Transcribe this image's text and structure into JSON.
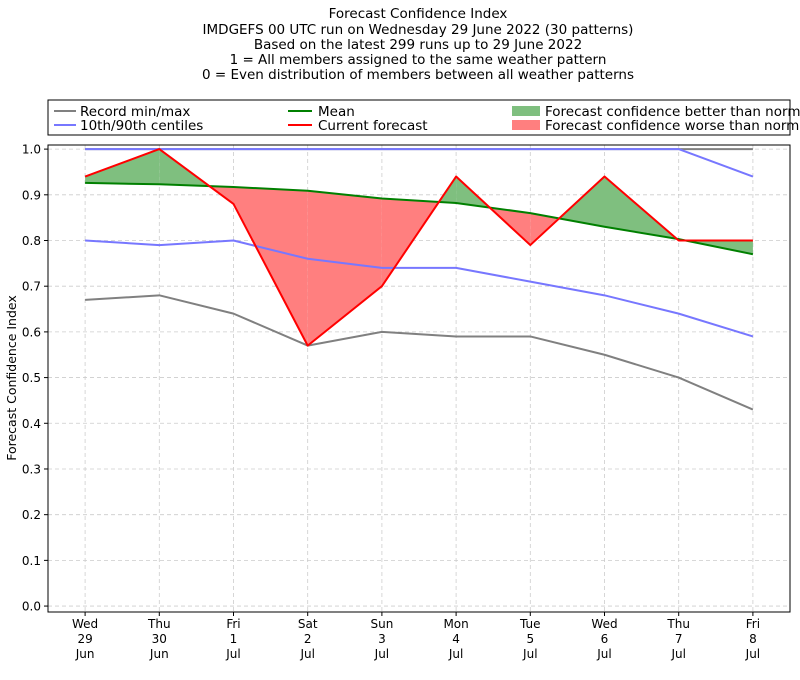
{
  "chart_data": {
    "type": "line",
    "title_lines": [
      "Forecast Confidence Index",
      "IMDGEFS 00 UTC run on Wednesday 29 June 2022 (30 patterns)",
      "Based on the latest 299 runs up to 29 June 2022",
      "1 = All members assigned to the same weather pattern",
      "0 = Even distribution of members between all weather patterns"
    ],
    "ylabel": "Forecast Confidence Index",
    "xlabel": "",
    "categories": [
      [
        "Wed",
        "29",
        "Jun"
      ],
      [
        "Thu",
        "30",
        "Jun"
      ],
      [
        "Fri",
        "1",
        "Jul"
      ],
      [
        "Sat",
        "2",
        "Jul"
      ],
      [
        "Sun",
        "3",
        "Jul"
      ],
      [
        "Mon",
        "4",
        "Jul"
      ],
      [
        "Tue",
        "5",
        "Jul"
      ],
      [
        "Wed",
        "6",
        "Jul"
      ],
      [
        "Thu",
        "7",
        "Jul"
      ],
      [
        "Fri",
        "8",
        "Jul"
      ]
    ],
    "ylim": [
      -0.013,
      1.009
    ],
    "yticks": [
      "0.0",
      "0.1",
      "0.2",
      "0.3",
      "0.4",
      "0.5",
      "0.6",
      "0.7",
      "0.8",
      "0.9",
      "1.0"
    ],
    "grid": true,
    "legend_placement": "top, above plot",
    "series": [
      {
        "name": "Record min/max",
        "color": "#808080",
        "role": "max",
        "values": [
          1.0,
          1.0,
          1.0,
          1.0,
          1.0,
          1.0,
          1.0,
          1.0,
          1.0,
          1.0
        ]
      },
      {
        "name": "Record min/max",
        "color": "#808080",
        "role": "min",
        "values": [
          0.67,
          0.68,
          0.64,
          0.57,
          0.6,
          0.59,
          0.59,
          0.55,
          0.5,
          0.43
        ]
      },
      {
        "name": "10th/90th centiles",
        "color": "#7777ff",
        "role": "p90",
        "values": [
          1.0,
          1.0,
          1.0,
          1.0,
          1.0,
          1.0,
          1.0,
          1.0,
          1.0,
          0.94
        ]
      },
      {
        "name": "10th/90th centiles",
        "color": "#7777ff",
        "role": "p10",
        "values": [
          0.8,
          0.79,
          0.8,
          0.76,
          0.74,
          0.74,
          0.71,
          0.68,
          0.64,
          0.59
        ]
      },
      {
        "name": "Mean",
        "color": "#008000",
        "role": "mean",
        "values": [
          0.926,
          0.923,
          0.917,
          0.909,
          0.892,
          0.882,
          0.86,
          0.83,
          0.803,
          0.77
        ]
      },
      {
        "name": "Current forecast",
        "color": "#ff0000",
        "role": "current",
        "values": [
          0.94,
          1.0,
          0.88,
          0.57,
          0.7,
          0.94,
          0.79,
          0.94,
          0.8,
          0.8
        ]
      }
    ],
    "fills": [
      {
        "name": "Forecast confidence better than normal",
        "color": "#7fbf7f"
      },
      {
        "name": "Forecast confidence worse than normal",
        "color": "#ff7f7f"
      }
    ]
  }
}
